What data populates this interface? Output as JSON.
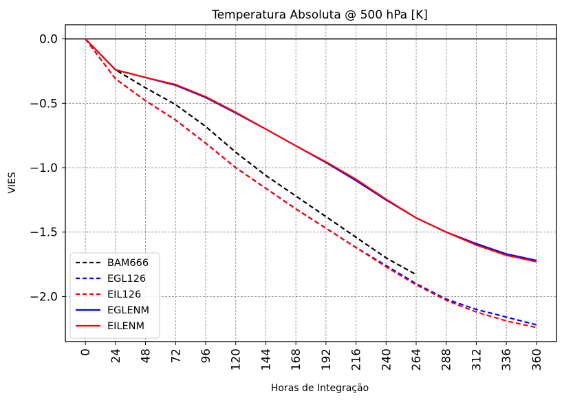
{
  "chart_data": {
    "type": "line",
    "title": "Temperatura Absoluta @ 500 hPa [K]",
    "xlabel": "Horas de Integração",
    "ylabel": "VIES",
    "x": [
      0,
      24,
      48,
      72,
      96,
      120,
      144,
      168,
      192,
      216,
      240,
      264,
      288,
      312,
      336,
      360
    ],
    "x_tick_labels": [
      "0",
      "24",
      "48",
      "72",
      "96",
      "120",
      "144",
      "168",
      "192",
      "216",
      "240",
      "264",
      "288",
      "312",
      "336",
      "360"
    ],
    "xlim": [
      -16,
      376
    ],
    "y_ticks": [
      0.0,
      -0.5,
      -1.0,
      -1.5,
      -2.0
    ],
    "y_tick_labels": [
      "0.0",
      "−0.5",
      "−1.0",
      "−1.5",
      "−2.0"
    ],
    "ylim": [
      -2.35,
      0.11
    ],
    "grid": true,
    "reference_line": 0.0,
    "legend_position": "lower-left",
    "series": [
      {
        "name": "BAM666",
        "color": "#000000",
        "style": "dashed",
        "values": [
          0.0,
          -0.24,
          -0.38,
          -0.51,
          -0.68,
          -0.88,
          -1.06,
          -1.22,
          -1.38,
          -1.54,
          -1.7,
          -1.83,
          null,
          null,
          null,
          null
        ]
      },
      {
        "name": "EGL126",
        "color": "#0000ff",
        "style": "dashed",
        "values": [
          0.0,
          -0.31,
          -0.48,
          -0.63,
          -0.81,
          -1.0,
          -1.16,
          -1.32,
          -1.47,
          -1.62,
          -1.76,
          -1.9,
          -2.02,
          -2.1,
          -2.16,
          -2.22
        ]
      },
      {
        "name": "EIL126",
        "color": "#ff0000",
        "style": "dashed",
        "values": [
          0.0,
          -0.31,
          -0.48,
          -0.63,
          -0.81,
          -1.0,
          -1.16,
          -1.32,
          -1.47,
          -1.62,
          -1.77,
          -1.91,
          -2.03,
          -2.12,
          -2.19,
          -2.24
        ]
      },
      {
        "name": "EGLENM",
        "color": "#0000ff",
        "style": "solid",
        "values": [
          0.0,
          -0.24,
          -0.3,
          -0.36,
          -0.455,
          -0.575,
          -0.7,
          -0.83,
          -0.96,
          -1.1,
          -1.25,
          -1.39,
          -1.5,
          -1.59,
          -1.67,
          -1.72
        ]
      },
      {
        "name": "EILENM",
        "color": "#ff0000",
        "style": "solid",
        "values": [
          0.0,
          -0.24,
          -0.3,
          -0.355,
          -0.45,
          -0.57,
          -0.7,
          -0.83,
          -0.955,
          -1.09,
          -1.245,
          -1.39,
          -1.5,
          -1.6,
          -1.68,
          -1.73
        ]
      }
    ]
  }
}
